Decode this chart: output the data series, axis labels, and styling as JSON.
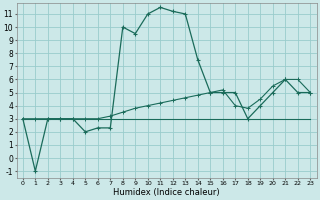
{
  "xlabel": "Humidex (Indice chaleur)",
  "bg_color": "#cce8e8",
  "grid_color": "#99cccc",
  "line_color": "#1a6b5a",
  "xlim": [
    -0.5,
    23.5
  ],
  "ylim": [
    -1.5,
    11.8
  ],
  "xticks": [
    0,
    1,
    2,
    3,
    4,
    5,
    6,
    7,
    8,
    9,
    10,
    11,
    12,
    13,
    14,
    15,
    16,
    17,
    18,
    19,
    20,
    21,
    22,
    23
  ],
  "yticks": [
    -1,
    0,
    1,
    2,
    3,
    4,
    5,
    6,
    7,
    8,
    9,
    10,
    11
  ],
  "s1_x": [
    0,
    1,
    2,
    3,
    4,
    5,
    6,
    7,
    8,
    9,
    10,
    11,
    12,
    13,
    14,
    15,
    16,
    17,
    18,
    19,
    20,
    21,
    22,
    23
  ],
  "s1_y": [
    3,
    -1,
    3,
    3,
    3,
    2,
    2.3,
    2.3,
    10,
    9.5,
    11,
    11.5,
    11.2,
    11,
    7.5,
    5,
    5,
    5,
    3,
    4,
    5,
    6,
    5,
    5
  ],
  "s2_x": [
    0,
    1,
    2,
    3,
    4,
    5,
    6,
    7,
    8,
    9,
    10,
    11,
    12,
    13,
    14,
    15,
    16,
    17,
    18,
    19,
    20,
    21,
    22,
    23
  ],
  "s2_y": [
    3,
    3,
    3,
    3,
    3,
    3,
    3,
    3,
    3,
    3,
    3,
    3,
    3,
    3,
    3,
    3,
    3,
    3,
    3,
    3,
    3,
    3,
    3,
    3
  ],
  "s3_x": [
    0,
    1,
    2,
    3,
    4,
    5,
    6,
    7,
    8,
    9,
    10,
    11,
    12,
    13,
    14,
    15,
    16,
    17,
    18,
    19,
    20,
    21,
    22,
    23
  ],
  "s3_y": [
    3,
    3,
    3,
    3,
    3,
    3,
    3,
    3.2,
    3.5,
    3.8,
    4.0,
    4.2,
    4.4,
    4.6,
    4.8,
    5.0,
    5.2,
    4.0,
    3.8,
    4.5,
    5.5,
    6.0,
    6.0,
    5.0
  ],
  "figsize": [
    3.2,
    2.0
  ],
  "dpi": 100
}
